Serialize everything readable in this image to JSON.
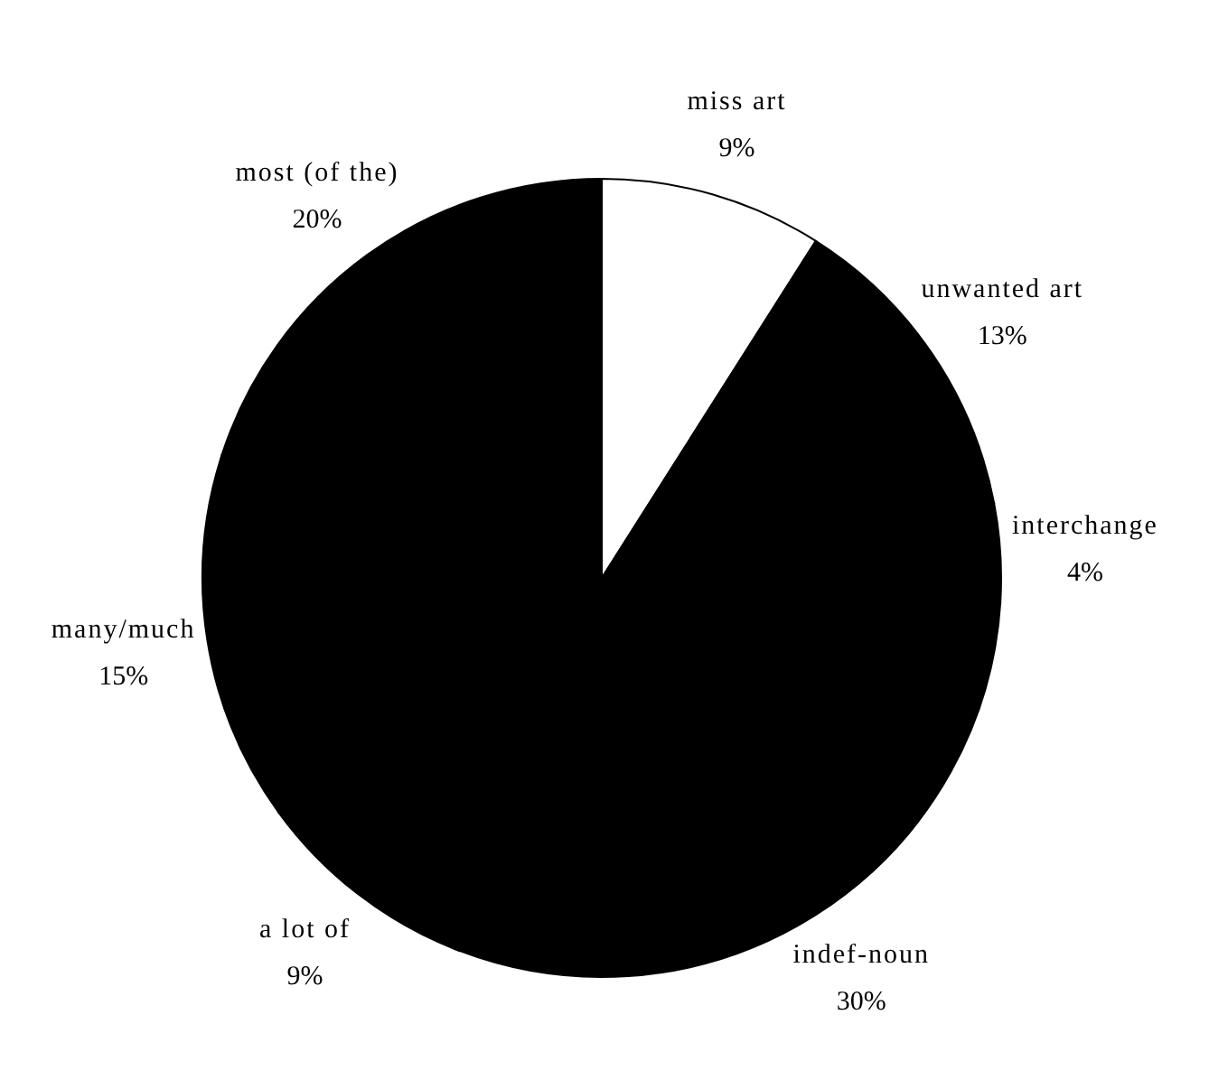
{
  "chart_data": {
    "type": "pie",
    "categories": [
      "miss art",
      "unwanted art",
      "interchange",
      "indef-noun",
      "a lot of",
      "many/much",
      "most (of the)"
    ],
    "values": [
      9,
      13,
      4,
      30,
      9,
      15,
      20
    ],
    "colors": [
      "#ffffff",
      "#000000",
      "#000000",
      "#000000",
      "#000000",
      "#000000",
      "#000000"
    ],
    "value_labels": [
      "9%",
      "13%",
      "4%",
      "30%",
      "9%",
      "15%",
      "20%"
    ]
  }
}
